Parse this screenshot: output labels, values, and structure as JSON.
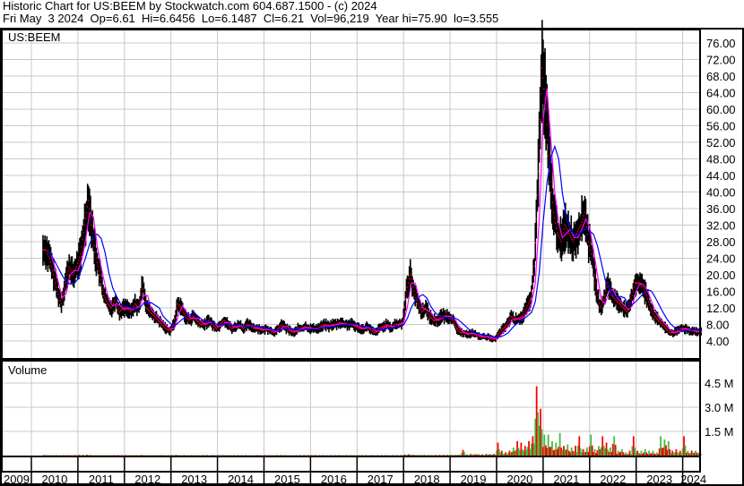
{
  "header": {
    "line1": "Historic Chart for US:BEEM by Stockwatch.com 604.687.1500 - (c) 2024",
    "line2": "Fri May  3 2024  Op=6.61  Hi=6.6456  Lo=6.1487  Cl=6.21  Vol=96,219  Year hi=75.90  lo=3.555"
  },
  "chart_data": [
    {
      "type": "line",
      "title": "US:BEEM",
      "series_label_note": "",
      "ylim": [
        4,
        76
      ],
      "y_ticks": [
        "76.00",
        "72.00",
        "68.00",
        "64.00",
        "60.00",
        "56.00",
        "52.00",
        "48.00",
        "44.00",
        "40.00",
        "36.00",
        "32.00",
        "28.00",
        "24.00",
        "20.00",
        "16.00",
        "12.00",
        "8.00",
        "4.00"
      ],
      "x_ticks": [
        "2009",
        "2010",
        "2011",
        "2012",
        "2013",
        "2014",
        "2015",
        "2016",
        "2017",
        "2018",
        "2019",
        "2020",
        "2021",
        "2022",
        "2023",
        "2024"
      ],
      "grid": true,
      "colors": {
        "bars": "#000000",
        "close_marks": "#ff0000",
        "ma_short": "#ff00ff",
        "ma_long": "#0000ff"
      },
      "start": "2010-04",
      "monthly_close": [
        26,
        24,
        20,
        16,
        13,
        18,
        22,
        20,
        22,
        25,
        32,
        38,
        30,
        24,
        20,
        15,
        13,
        12,
        14,
        11,
        12,
        12,
        11,
        13,
        12,
        18,
        12,
        11,
        10,
        9,
        8,
        7,
        6.5,
        8,
        13,
        12,
        10,
        9,
        10,
        9,
        8,
        8,
        9,
        8,
        7,
        8,
        9,
        8,
        7,
        7.5,
        8,
        7,
        8,
        7.5,
        7,
        7,
        6.5,
        7,
        6.5,
        6,
        7,
        8,
        7,
        6.5,
        6,
        7,
        7,
        7.5,
        7,
        7,
        7,
        7.5,
        8,
        7.5,
        8,
        8,
        8.5,
        8,
        8,
        8,
        7.5,
        7,
        7,
        7.5,
        6.5,
        6,
        7,
        7.5,
        8,
        7,
        8,
        8,
        8.5,
        16,
        20,
        16,
        13,
        11,
        12,
        10,
        9,
        9,
        10,
        10,
        10,
        9,
        7,
        6,
        6,
        5.5,
        6,
        5.5,
        5,
        5,
        5,
        4.5,
        4.5,
        6,
        7,
        8,
        10,
        9,
        9.5,
        10,
        12,
        14,
        22,
        45,
        70,
        60,
        45,
        35,
        30,
        28,
        32,
        30,
        28,
        30,
        32,
        35,
        28,
        24,
        16,
        12,
        14,
        18,
        15,
        14,
        13,
        12,
        11,
        14,
        18,
        18,
        17,
        15,
        12,
        10,
        9,
        8,
        7,
        6,
        6,
        6.5,
        7,
        7,
        6.5,
        6.5,
        6.2,
        6.21
      ]
    },
    {
      "type": "bar",
      "title": "Volume",
      "ylim": [
        0,
        5.6
      ],
      "unit": "M",
      "y_ticks": [
        "4.5 M",
        "3.0 M",
        "1.5 M"
      ],
      "colors": {
        "up": "#44bb44",
        "down": "#ff0000"
      },
      "start": "2010-04",
      "monthly_volume_peak_M": [
        0.03,
        0.03,
        0.03,
        0.03,
        0.03,
        0.03,
        0.03,
        0.03,
        0.03,
        0.04,
        0.04,
        0.05,
        0.04,
        0.03,
        0.03,
        0.03,
        0.03,
        0.03,
        0.03,
        0.03,
        0.03,
        0.03,
        0.03,
        0.03,
        0.03,
        0.04,
        0.03,
        0.03,
        0.03,
        0.03,
        0.03,
        0.03,
        0.03,
        0.03,
        0.04,
        0.03,
        0.03,
        0.03,
        0.03,
        0.03,
        0.03,
        0.03,
        0.03,
        0.03,
        0.03,
        0.03,
        0.03,
        0.03,
        0.03,
        0.03,
        0.03,
        0.03,
        0.03,
        0.03,
        0.03,
        0.03,
        0.03,
        0.03,
        0.03,
        0.03,
        0.03,
        0.03,
        0.03,
        0.03,
        0.03,
        0.03,
        0.03,
        0.03,
        0.03,
        0.03,
        0.03,
        0.03,
        0.03,
        0.03,
        0.03,
        0.03,
        0.03,
        0.03,
        0.03,
        0.03,
        0.03,
        0.03,
        0.03,
        0.03,
        0.03,
        0.03,
        0.03,
        0.03,
        0.03,
        0.03,
        0.03,
        0.03,
        0.03,
        0.06,
        0.08,
        0.05,
        0.04,
        0.04,
        0.04,
        0.04,
        0.04,
        0.04,
        0.04,
        0.04,
        0.04,
        0.05,
        0.05,
        0.05,
        0.35,
        0.08,
        0.1,
        0.1,
        0.1,
        0.08,
        0.1,
        0.1,
        0.1,
        0.8,
        0.3,
        0.2,
        0.3,
        0.5,
        0.9,
        0.8,
        0.6,
        0.9,
        1.2,
        4.3,
        2.9,
        1.3,
        1.3,
        0.9,
        0.8,
        1.4,
        0.6,
        0.7,
        0.5,
        0.6,
        1.2,
        0.4,
        0.5,
        1.3,
        0.4,
        0.6,
        1.2,
        0.8,
        0.5,
        1.2,
        0.3,
        0.4,
        0.2,
        0.3,
        1.2,
        0.3,
        0.3,
        0.4,
        0.3,
        0.3,
        0.2,
        1.2,
        1.0,
        0.9,
        0.3,
        0.4,
        0.3,
        1.2,
        0.3,
        0.3,
        0.3,
        0.2
      ]
    }
  ]
}
